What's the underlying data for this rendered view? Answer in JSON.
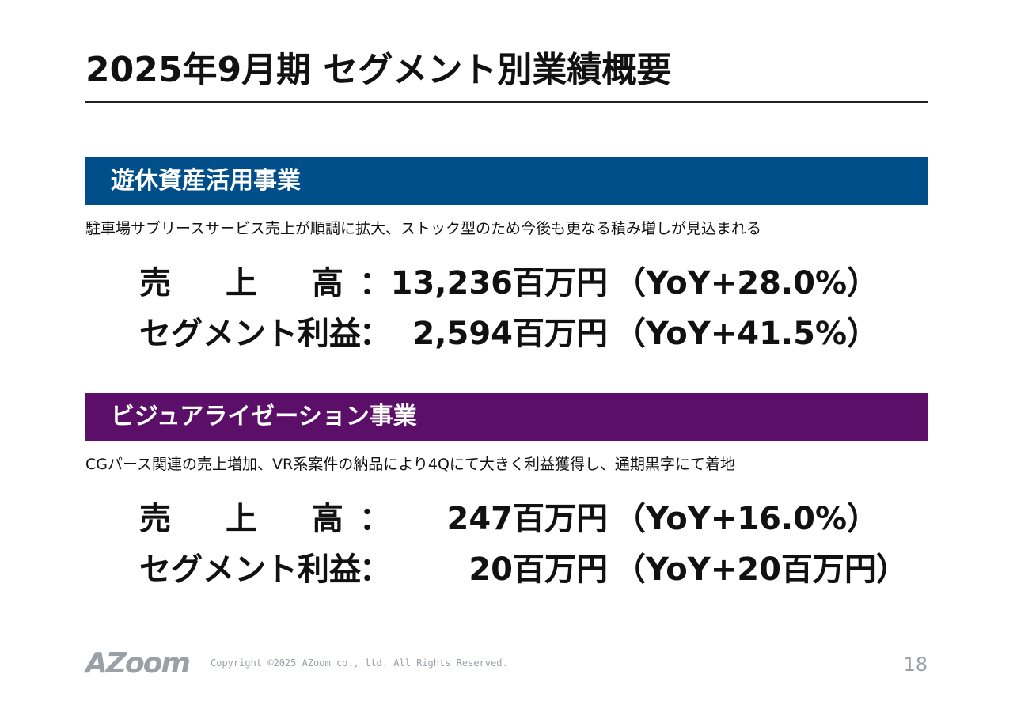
{
  "title": "2025年9月期 セグメント別業績概要",
  "sections": [
    {
      "header": "遊休資産活用事業",
      "color": "#004f8b",
      "description": "駐車場サブリースサービス売上が順調に拡大、ストック型のため今後も更なる積み増しが見込まれる",
      "rows": [
        {
          "label": "売上高",
          "colon": "：",
          "value": "13,236百万円",
          "yoy": "（YoY+28.0%）"
        },
        {
          "label": "セグメント利益",
          "colon": "：",
          "value": "2,594百万円",
          "yoy": "（YoY+41.5%）"
        }
      ]
    },
    {
      "header": "ビジュアライゼーション事業",
      "color": "#5b0f68",
      "description": "CGパース関連の売上増加、VR系案件の納品により4Qにて大きく利益獲得し、通期黒字にて着地",
      "rows": [
        {
          "label": "売上高",
          "colon": "：",
          "value": "247百万円",
          "yoy": "（YoY+16.0%）"
        },
        {
          "label": "セグメント利益",
          "colon": "：",
          "value": "20百万円",
          "yoy": "（YoY+20百万円）"
        }
      ]
    }
  ],
  "footer": {
    "logo": "AZoom",
    "copyright": "Copyright ©2025 AZoom co., ltd. All Rights Reserved.",
    "page": "18"
  }
}
